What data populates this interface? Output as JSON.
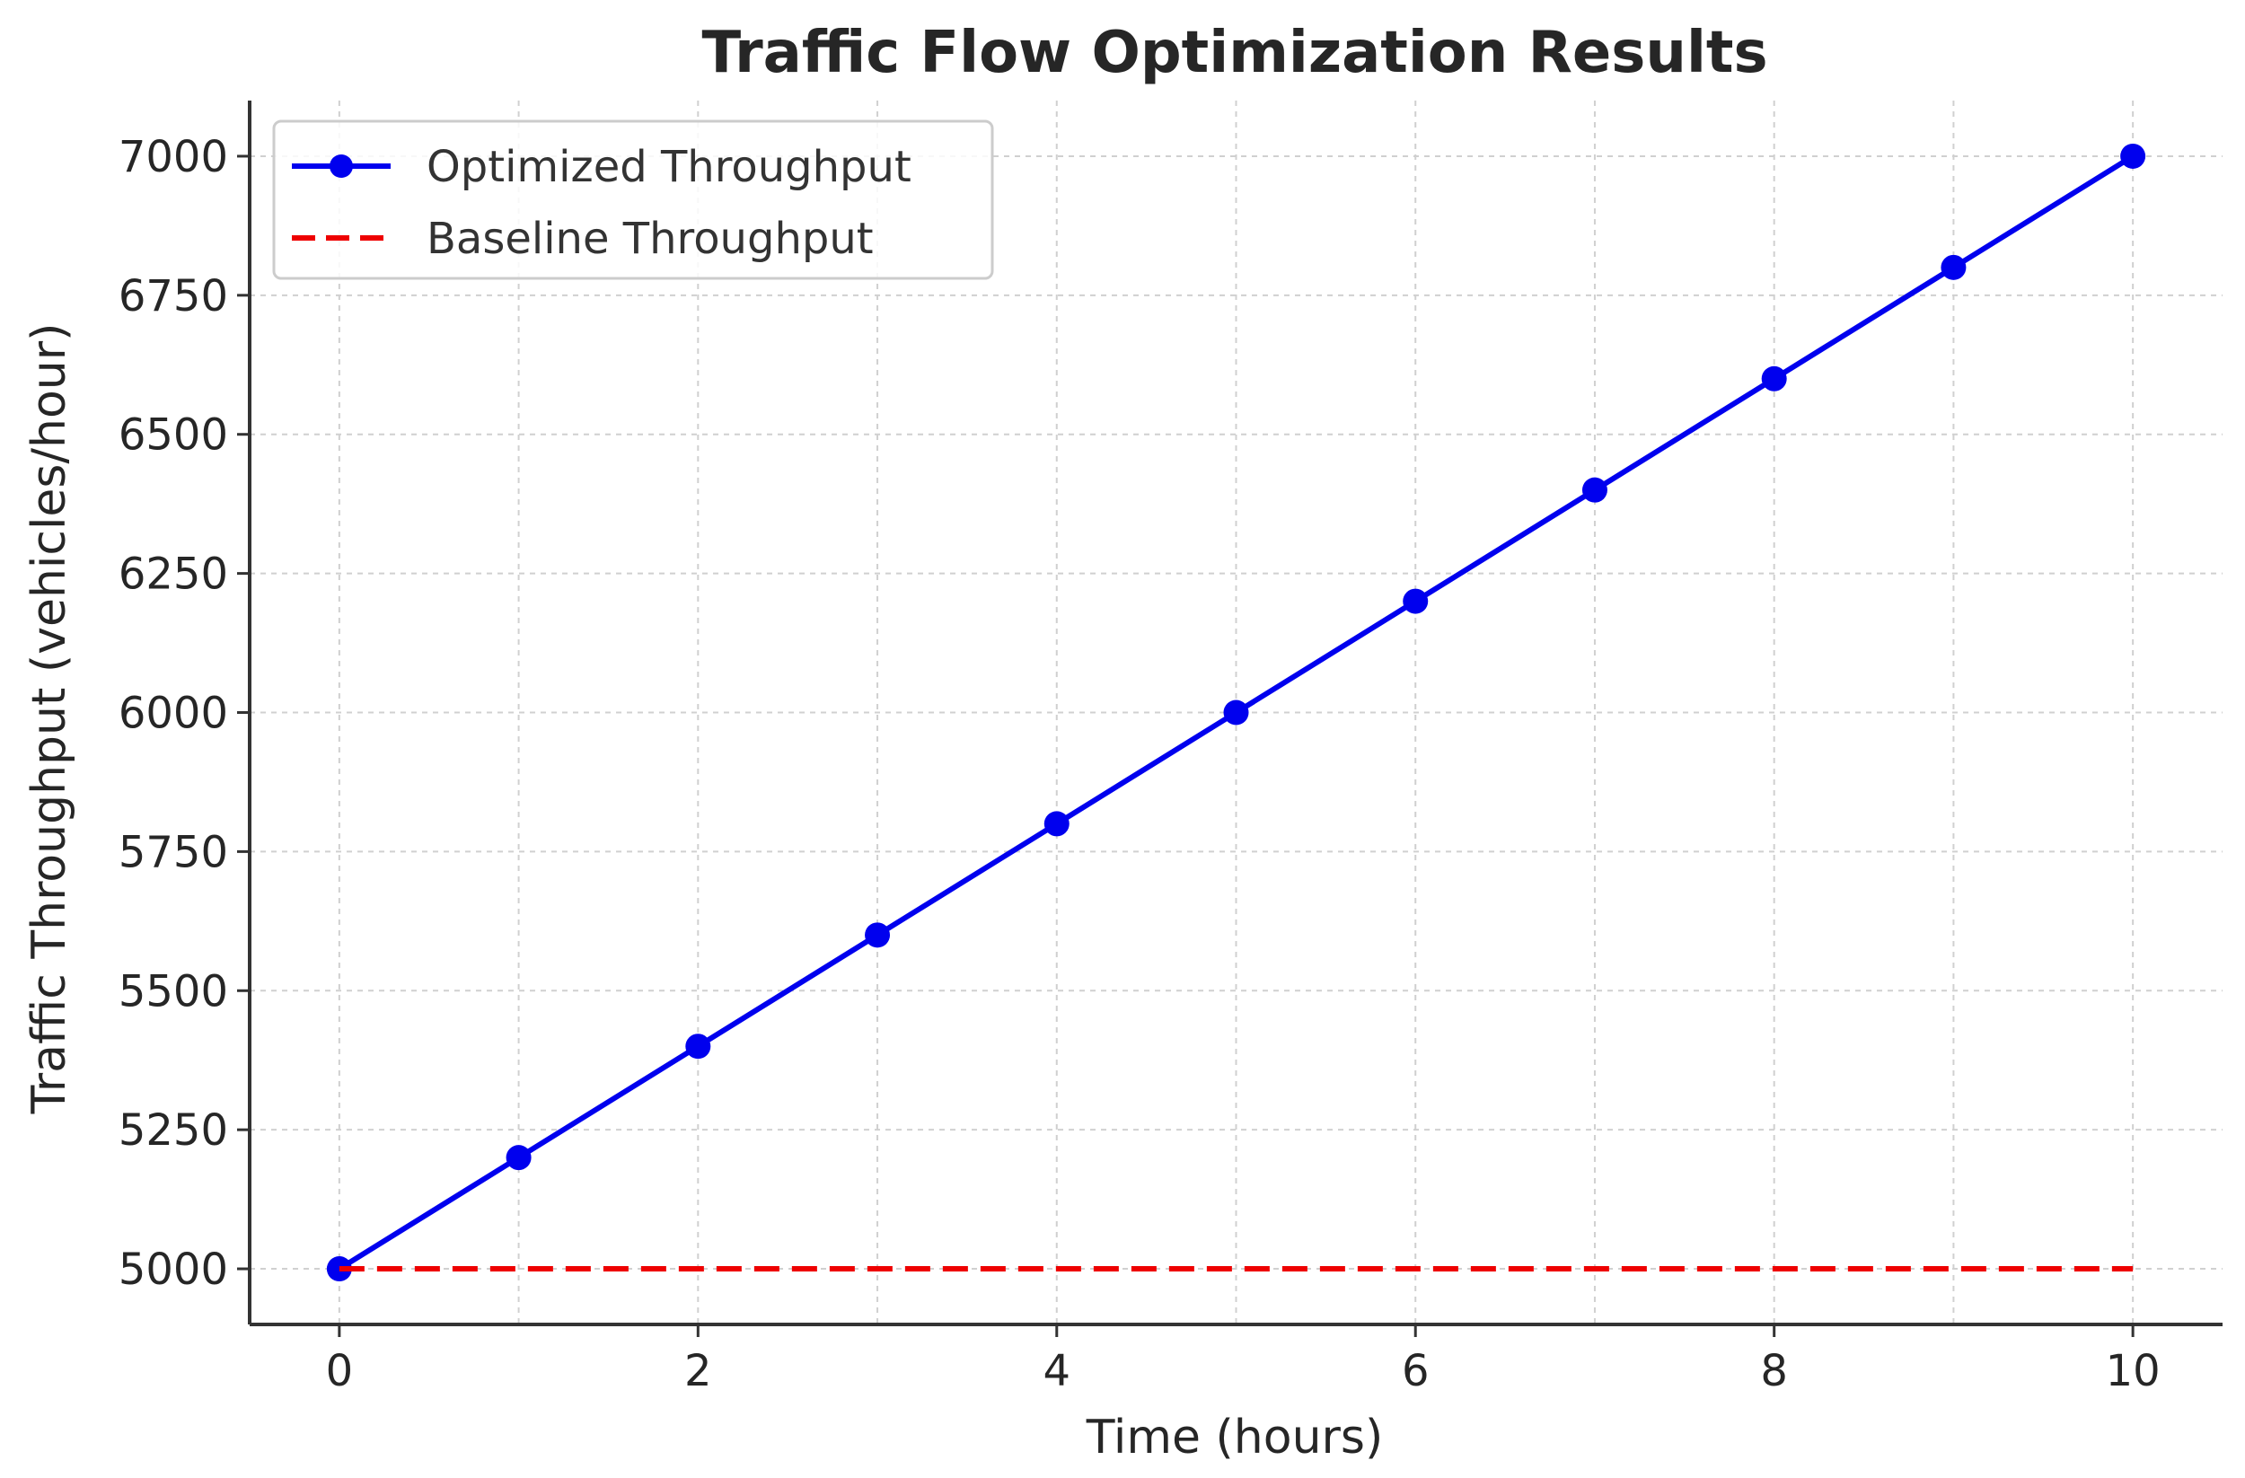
{
  "chart_data": {
    "type": "line",
    "title": "Traffic Flow Optimization Results",
    "xlabel": "Time (hours)",
    "ylabel": "Traffic Throughput (vehicles/hour)",
    "x": [
      0,
      1,
      2,
      3,
      4,
      5,
      6,
      7,
      8,
      9,
      10
    ],
    "xlim": [
      -0.5,
      10.5
    ],
    "ylim": [
      4900,
      7100
    ],
    "xticks": [
      0,
      2,
      4,
      6,
      8,
      10
    ],
    "yticks": [
      5000,
      5250,
      5500,
      5750,
      6000,
      6250,
      6500,
      6750,
      7000
    ],
    "grid": true,
    "legend_position": "top-left",
    "series": [
      {
        "name": "Optimized Throughput",
        "values": [
          5000,
          5200,
          5400,
          5600,
          5800,
          6000,
          6200,
          6400,
          6600,
          6800,
          7000
        ],
        "color": "#0000ee",
        "style": "solid",
        "marker": "circle"
      },
      {
        "name": "Baseline Throughput",
        "values": [
          5000,
          5000,
          5000,
          5000,
          5000,
          5000,
          5000,
          5000,
          5000,
          5000,
          5000
        ],
        "color": "#ee0000",
        "style": "dashed",
        "marker": "none"
      }
    ]
  }
}
